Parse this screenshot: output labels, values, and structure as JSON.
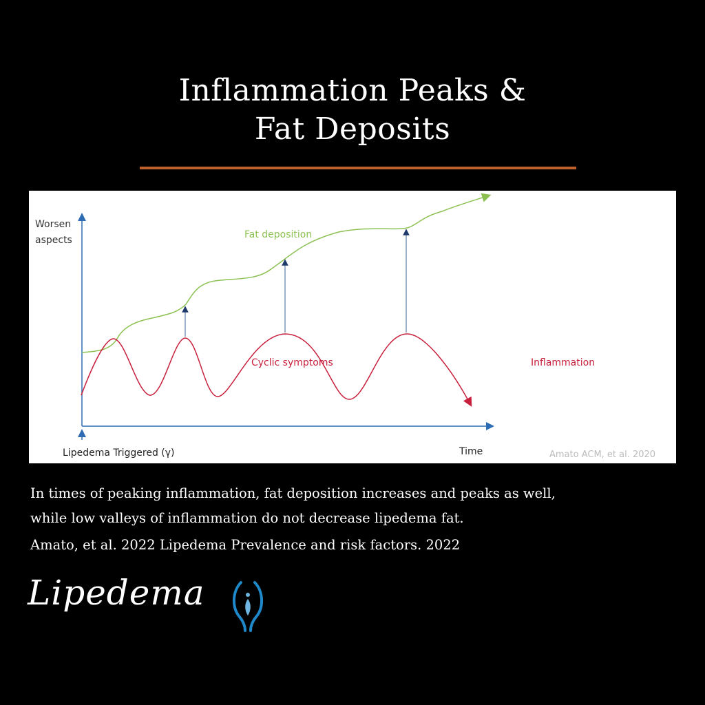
{
  "title": {
    "line1": "Inflammation Peaks &",
    "line2": "Fat Deposits",
    "accent_color": "#c0612b"
  },
  "diagram": {
    "y_axis_label_1": "Worsen",
    "y_axis_label_2": "aspects",
    "x_axis_label": "Time",
    "origin_label": "Lipedema Triggered (γ)",
    "fat_label": "Fat deposition",
    "cyclic_label": "Cyclic symptoms",
    "inflammation_label": "Inflammation",
    "credit": "Amato ACM, et al. 2020",
    "colors": {
      "fat": "#8cc152",
      "inflammation": "#c8203c",
      "axis": "#2e6db4",
      "text": "#333333",
      "credit": "#bbbbbb"
    }
  },
  "caption": {
    "line1": "In times of peaking inflammation, fat deposition increases and peaks as well,",
    "line2": "while low valleys of inflammation do not decrease lipedema fat.",
    "line3": "Amato, et al. 2022 Lipedema Prevalence and risk factors. 2022"
  },
  "logo": {
    "text": "Lipedema",
    "icon": "lipedema-logo-icon",
    "icon_color": "#1e88c8"
  }
}
